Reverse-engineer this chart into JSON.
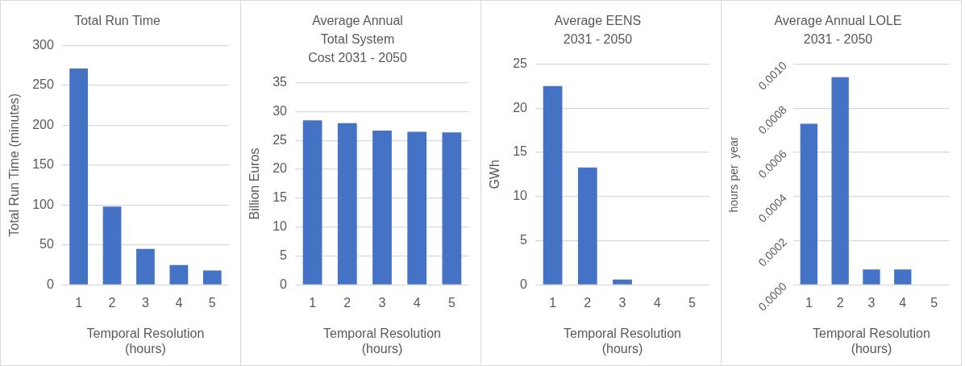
{
  "chart_data": [
    {
      "type": "bar",
      "title": "Total Run Time",
      "xlabel": "Temporal Resolution\n(hours)",
      "ylabel": "Total Run Time (minutes)",
      "categories": [
        "1",
        "2",
        "3",
        "4",
        "5"
      ],
      "values": [
        271,
        98,
        45,
        25,
        18
      ],
      "color": "#4472c4",
      "ylim": [
        0,
        300
      ],
      "yticks": [
        0,
        50,
        100,
        150,
        200,
        250,
        300
      ],
      "grid": "y",
      "legend": false
    },
    {
      "type": "bar",
      "title": "Average Annual\nTotal System\nCost 2031 - 2050",
      "xlabel": "Temporal Resolution\n(hours)",
      "ylabel": "Billion Euros",
      "categories": [
        "1",
        "2",
        "3",
        "4",
        "5"
      ],
      "values": [
        28.5,
        28.0,
        26.7,
        26.5,
        26.4
      ],
      "color": "#4472c4",
      "ylim": [
        0,
        35
      ],
      "yticks": [
        0,
        5,
        10,
        15,
        20,
        25,
        30,
        35
      ],
      "grid": "y",
      "legend": false
    },
    {
      "type": "bar",
      "title": "Average EENS\n2031 - 2050",
      "xlabel": "Temporal Resolution\n(hours)",
      "ylabel": "GWh",
      "categories": [
        "1",
        "2",
        "3",
        "4",
        "5"
      ],
      "values": [
        22.5,
        13.3,
        0.6,
        0,
        0
      ],
      "color": "#4472c4",
      "ylim": [
        0,
        25
      ],
      "yticks": [
        0,
        5,
        10,
        15,
        20,
        25
      ],
      "grid": "y",
      "legend": false
    },
    {
      "type": "bar",
      "title": "Average Annual LOLE\n2031 - 2050",
      "xlabel": "Temporal Resolution\n(hours)",
      "ylabel": "hours per  year",
      "categories": [
        "1",
        "2",
        "3",
        "4",
        "5"
      ],
      "values": [
        0.00073,
        0.00094,
        7e-05,
        7e-05,
        0
      ],
      "color": "#4472c4",
      "ylim": [
        0,
        0.001
      ],
      "yticks": [
        {
          "value": 0,
          "label": "0.0000"
        },
        {
          "value": 0.0002,
          "label": "0.0002"
        },
        {
          "value": 0.0004,
          "label": "0.0004"
        },
        {
          "value": 0.0006,
          "label": "0.0006"
        },
        {
          "value": 0.0008,
          "label": "0.0008"
        },
        {
          "value": 0.001,
          "label": "0.0010"
        }
      ],
      "grid": "y",
      "legend": false
    }
  ]
}
